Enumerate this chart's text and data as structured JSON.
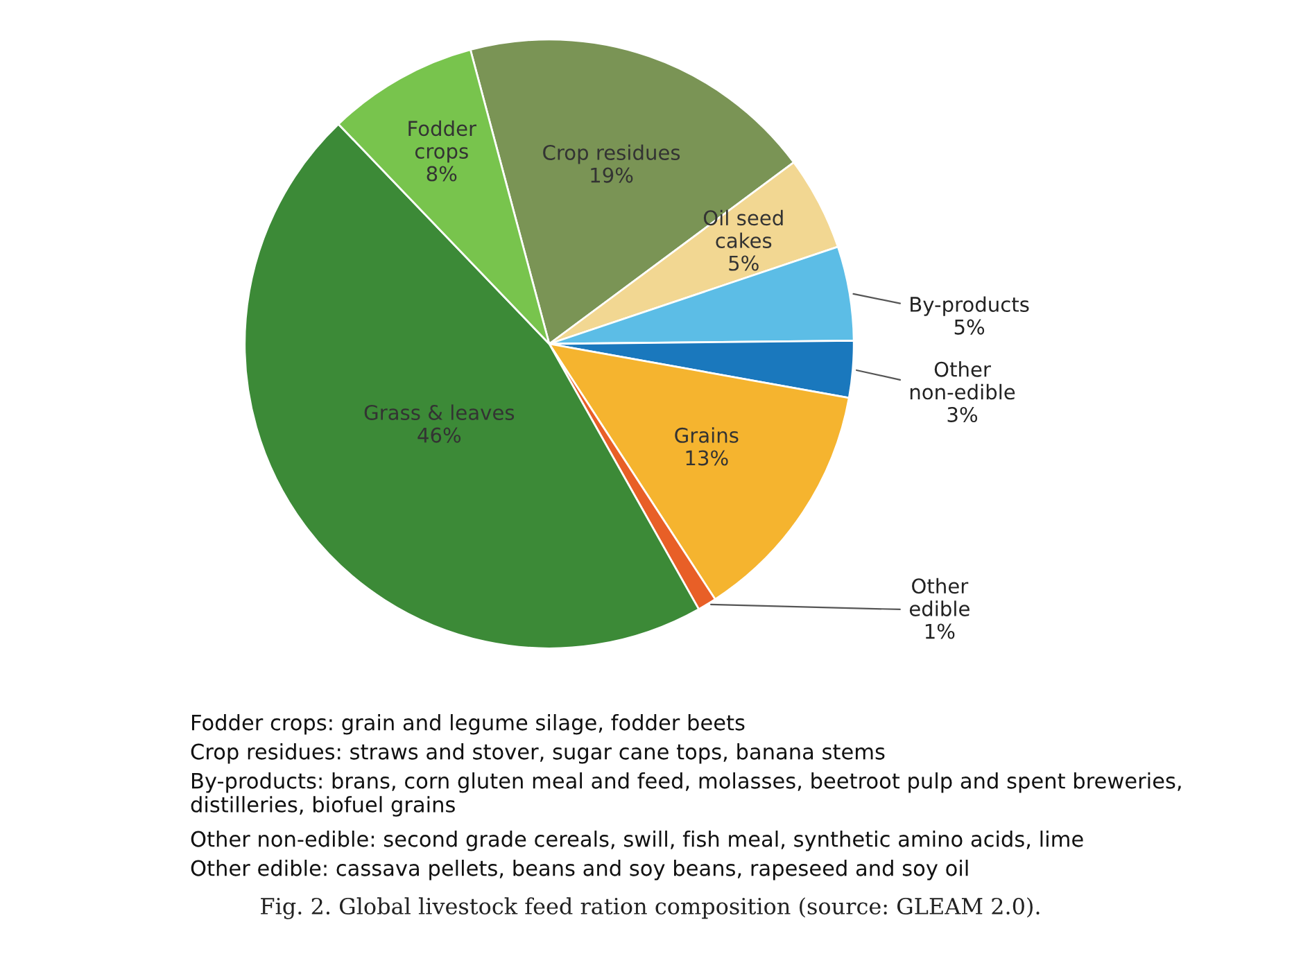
{
  "chart_data": {
    "type": "pie",
    "categories": [
      "Crop residues",
      "Oil seed cakes",
      "By-products",
      "Other non-edible",
      "Grains",
      "Other edible",
      "Grass & leaves",
      "Fodder crops"
    ],
    "values": [
      19,
      5,
      5,
      3,
      13,
      1,
      46,
      8
    ],
    "value_labels": [
      "19%",
      "5%",
      "5%",
      "3%",
      "13%",
      "1%",
      "46%",
      "8%"
    ],
    "colors": [
      "#7a9455",
      "#f2d792",
      "#5cbde6",
      "#1a78bd",
      "#f5b42f",
      "#e85f27",
      "#3c8a37",
      "#78c44d"
    ],
    "annotations": [
      "Fodder crops: grain and legume silage, fodder beets",
      "Crop residues: straws and stover, sugar cane tops, banana stems",
      "By-products: brans, corn gluten meal and feed, molasses, beetroot pulp and spent breweries, distilleries, biofuel grains",
      "Other non-edible: second grade cereals, swill, fish meal, synthetic amino acids, lime",
      "Other edible: cassava pellets, beans and soy beans, rapeseed and soy oil",
      "Fig. 2. Global livestock feed ration composition (source: GLEAM 2.0)."
    ]
  }
}
